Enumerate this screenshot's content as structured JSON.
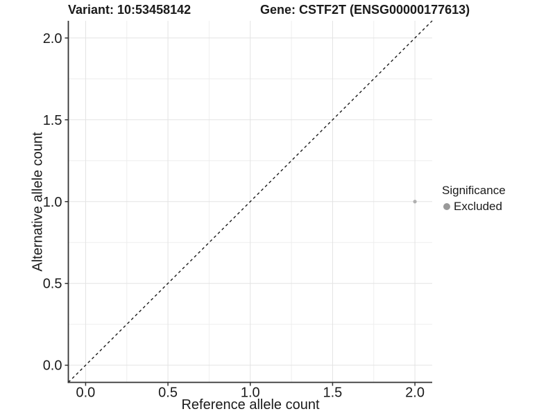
{
  "header": {
    "variant_title": "Variant: 10:53458142",
    "gene_title": "Gene: CSTF2T (ENSG00000177613)"
  },
  "chart_data": {
    "type": "scatter",
    "title": "Variant: 10:53458142   Gene: CSTF2T (ENSG00000177613)",
    "xlabel": "Reference allele count",
    "ylabel": "Alternative allele count",
    "xlim": [
      -0.105,
      2.105
    ],
    "ylim": [
      -0.105,
      2.105
    ],
    "x_ticks": [
      0,
      0.5,
      1,
      1.5,
      2
    ],
    "x_tick_labels": [
      "0.0",
      "0.5",
      "1.0",
      "1.5",
      "2.0"
    ],
    "y_ticks": [
      0,
      0.5,
      1,
      1.5,
      2
    ],
    "y_tick_labels": [
      "0.0",
      "0.5",
      "1.0",
      "1.5",
      "2.0"
    ],
    "minor_x_ticks": [
      0.25,
      0.75,
      1.25,
      1.75
    ],
    "minor_y_ticks": [
      0.25,
      0.75,
      1.25,
      1.75
    ],
    "grid": "major+minor",
    "series": [
      {
        "name": "Excluded",
        "color": "#b0b0b0",
        "points": [
          {
            "x": 2.0,
            "y": 1.0
          }
        ]
      }
    ],
    "reference_line": {
      "kind": "abline",
      "slope": 1,
      "intercept": 0,
      "style": "dashed",
      "color": "#1a1a1a"
    },
    "legend": {
      "title": "Significance",
      "position": "right",
      "entries": [
        {
          "label": "Excluded",
          "color": "#999999"
        }
      ]
    },
    "colors": {
      "background": "#ffffff",
      "grid_major": "#e3e3e3",
      "grid_minor": "#eeeeee",
      "axis_line": "#333333",
      "tick_text": "#1a1a1a"
    }
  }
}
